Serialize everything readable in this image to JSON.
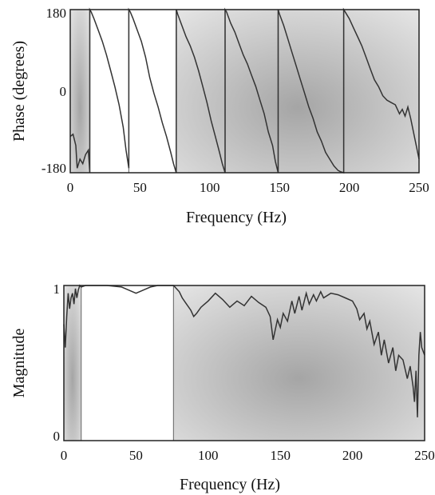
{
  "chart_data": [
    {
      "type": "line",
      "xlabel": "Frequency (Hz)",
      "ylabel": "Phase (degrees)",
      "xlim": [
        0,
        250
      ],
      "ylim": [
        -180,
        180
      ],
      "xticks": [
        "0",
        "50",
        "100",
        "150",
        "200",
        "250"
      ],
      "yticks": [
        "-180",
        "0",
        "180"
      ],
      "shaded_bands": [
        [
          0,
          14
        ],
        [
          76,
          250
        ]
      ],
      "band_boundaries": [
        14,
        42,
        76,
        111,
        149,
        196
      ],
      "series": [
        {
          "x": [
            0,
            2,
            4,
            5,
            7,
            9,
            11,
            13,
            14,
            14.01,
            15,
            17,
            20,
            23,
            26,
            29,
            32,
            35,
            38,
            40,
            42,
            42.01,
            43,
            45,
            48,
            51,
            54,
            57,
            60,
            63,
            66,
            69,
            72,
            74,
            76,
            76.01,
            77,
            80,
            83,
            86,
            89,
            92,
            95,
            98,
            101,
            104,
            107,
            109,
            111,
            111.01,
            112,
            115,
            118,
            121,
            124,
            127,
            130,
            133,
            136,
            139,
            142,
            145,
            147,
            149,
            149.01,
            150,
            153,
            156,
            159,
            162,
            165,
            168,
            171,
            174,
            177,
            180,
            183,
            186,
            189,
            192,
            194,
            196,
            196.01,
            197,
            200,
            203,
            206,
            209,
            212,
            215,
            218,
            221,
            224,
            227,
            230,
            233,
            236,
            238,
            240,
            242,
            244,
            246,
            248,
            250
          ],
          "y": [
            -100,
            -95,
            -120,
            -170,
            -150,
            -160,
            -140,
            -130,
            -180,
            180,
            175,
            160,
            135,
            110,
            80,
            45,
            10,
            -30,
            -80,
            -130,
            -170,
            180,
            175,
            160,
            135,
            110,
            75,
            30,
            -5,
            -35,
            -70,
            -100,
            -135,
            -160,
            -180,
            180,
            170,
            145,
            120,
            100,
            75,
            45,
            10,
            -25,
            -65,
            -100,
            -135,
            -160,
            -180,
            180,
            175,
            150,
            130,
            105,
            80,
            60,
            35,
            10,
            -20,
            -50,
            -90,
            -120,
            -155,
            -180,
            180,
            170,
            145,
            115,
            85,
            55,
            25,
            -5,
            -35,
            -60,
            -90,
            -110,
            -135,
            -150,
            -165,
            -175,
            -178,
            -180,
            180,
            175,
            160,
            140,
            120,
            100,
            75,
            50,
            25,
            10,
            -10,
            -20,
            -25,
            -30,
            -50,
            -40,
            -55,
            -35,
            -60,
            -90,
            -120,
            -150
          ]
        }
      ]
    },
    {
      "type": "line",
      "xlabel": "Frequency (Hz)",
      "ylabel": "Magnitude",
      "xlim": [
        0,
        250
      ],
      "ylim": [
        0,
        1
      ],
      "xticks": [
        "0",
        "50",
        "100",
        "150",
        "200",
        "250"
      ],
      "yticks": [
        "0",
        "1"
      ],
      "shaded_bands": [
        [
          0,
          12
        ],
        [
          76,
          250
        ]
      ],
      "band_boundaries": [
        12,
        76
      ],
      "series": [
        {
          "x": [
            0,
            1,
            2,
            3,
            4,
            5,
            6,
            7,
            8,
            9,
            10,
            11,
            12,
            15,
            20,
            30,
            40,
            45,
            50,
            55,
            60,
            65,
            70,
            76,
            78,
            80,
            82,
            85,
            88,
            90,
            92,
            95,
            100,
            105,
            110,
            115,
            120,
            125,
            130,
            135,
            140,
            143,
            145,
            148,
            150,
            152,
            155,
            158,
            160,
            163,
            165,
            168,
            170,
            173,
            175,
            178,
            180,
            185,
            190,
            195,
            200,
            203,
            205,
            208,
            210,
            212,
            215,
            218,
            220,
            222,
            225,
            228,
            230,
            232,
            235,
            238,
            240,
            242,
            243,
            244,
            245,
            246,
            247,
            248,
            250
          ],
          "y": [
            0.75,
            0.6,
            0.8,
            0.95,
            0.85,
            0.92,
            0.95,
            0.88,
            0.98,
            0.92,
            0.97,
            1.0,
            0.99,
            1.0,
            1.0,
            1.0,
            0.99,
            0.97,
            0.95,
            0.97,
            0.99,
            1.0,
            1.0,
            1.0,
            0.98,
            0.96,
            0.92,
            0.88,
            0.84,
            0.8,
            0.82,
            0.86,
            0.9,
            0.95,
            0.91,
            0.86,
            0.9,
            0.87,
            0.93,
            0.89,
            0.86,
            0.8,
            0.65,
            0.78,
            0.73,
            0.82,
            0.77,
            0.9,
            0.82,
            0.93,
            0.84,
            0.95,
            0.88,
            0.94,
            0.9,
            0.96,
            0.92,
            0.95,
            0.94,
            0.92,
            0.9,
            0.85,
            0.78,
            0.82,
            0.72,
            0.77,
            0.62,
            0.7,
            0.55,
            0.65,
            0.5,
            0.6,
            0.45,
            0.55,
            0.52,
            0.4,
            0.48,
            0.35,
            0.25,
            0.45,
            0.15,
            0.55,
            0.7,
            0.6,
            0.55
          ]
        }
      ]
    }
  ]
}
